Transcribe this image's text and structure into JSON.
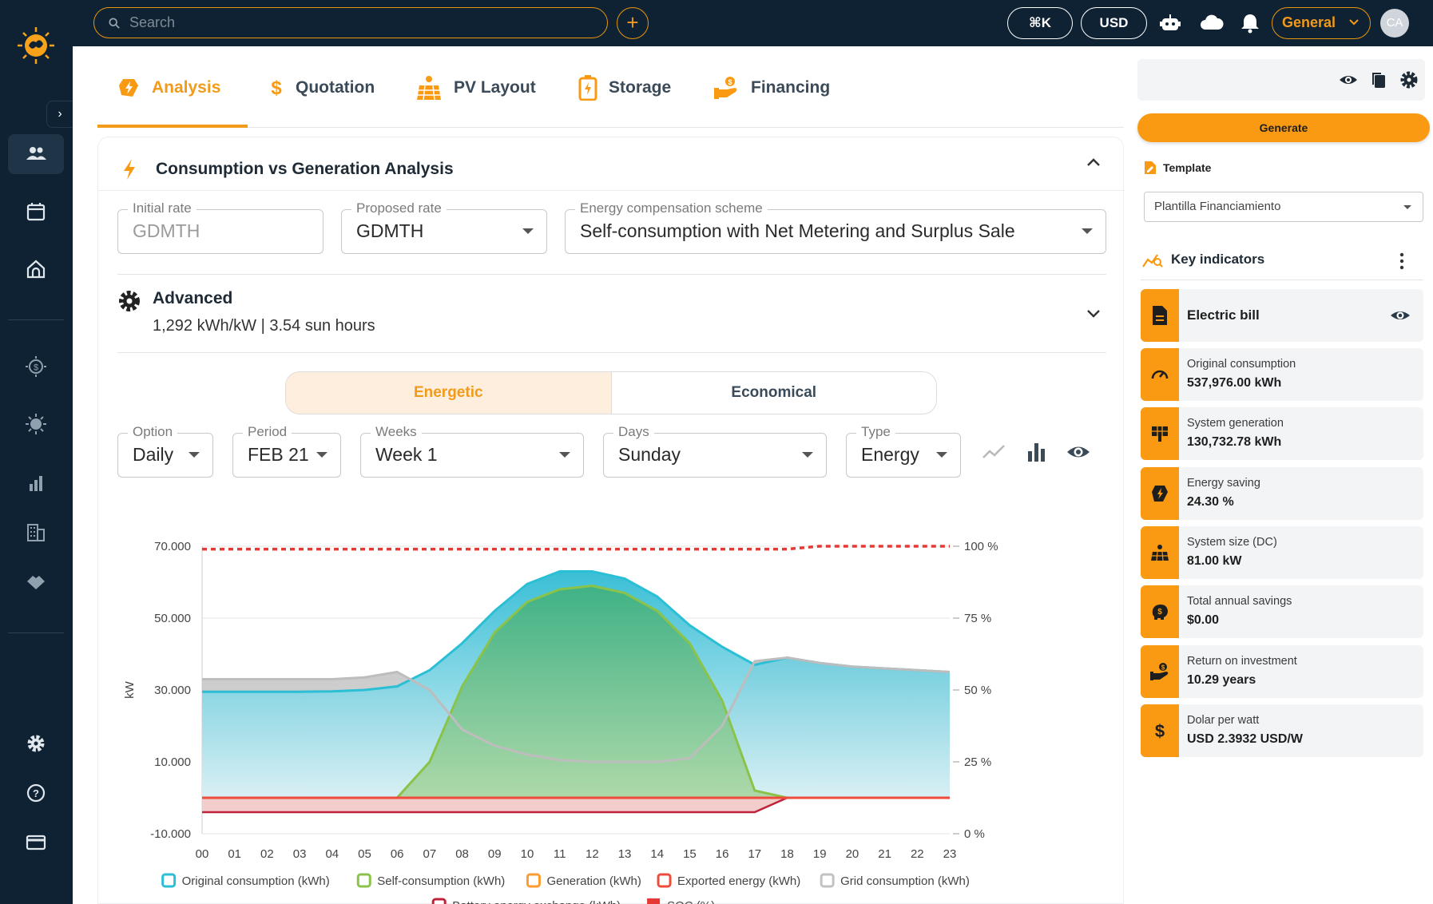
{
  "topbar": {
    "search_placeholder": "Search",
    "shortcut": "⌘K",
    "currency": "USD",
    "workspace": "General",
    "avatar_initials": "CA"
  },
  "tabs": [
    {
      "label": "Analysis",
      "active": true
    },
    {
      "label": "Quotation",
      "active": false
    },
    {
      "label": "PV Layout",
      "active": false
    },
    {
      "label": "Storage",
      "active": false
    },
    {
      "label": "Financing",
      "active": false
    }
  ],
  "analysis": {
    "title": "Consumption vs Generation Analysis",
    "initial_rate": {
      "label": "Initial rate",
      "value": "GDMTH"
    },
    "proposed_rate": {
      "label": "Proposed rate",
      "value": "GDMTH"
    },
    "scheme": {
      "label": "Energy compensation scheme",
      "value": "Self-consumption with Net Metering and Surplus Sale"
    },
    "advanced": {
      "title": "Advanced",
      "subtitle": "1,292 kWh/kW | 3.54 sun hours"
    },
    "toggle": {
      "energetic": "Energetic",
      "economical": "Economical",
      "selected": "Energetic"
    },
    "filters": {
      "option": {
        "label": "Option",
        "value": "Daily"
      },
      "period": {
        "label": "Period",
        "value": "FEB 21"
      },
      "weeks": {
        "label": "Weeks",
        "value": "Week 1"
      },
      "days": {
        "label": "Days",
        "value": "Sunday"
      },
      "type": {
        "label": "Type",
        "value": "Energy"
      }
    }
  },
  "chart_data": {
    "type": "area",
    "ylabel": "kW",
    "x": [
      "00",
      "01",
      "02",
      "03",
      "04",
      "05",
      "06",
      "07",
      "08",
      "09",
      "10",
      "11",
      "12",
      "13",
      "14",
      "15",
      "16",
      "17",
      "18",
      "19",
      "20",
      "21",
      "22",
      "23"
    ],
    "y_ticks": [
      "70.000",
      "50.000",
      "30.000",
      "10.000",
      "-10.000"
    ],
    "ylim": [
      -10,
      70
    ],
    "y2_ticks": [
      "100 %",
      "75 %",
      "50 %",
      "25 %",
      "0 %"
    ],
    "y2lim": [
      0,
      100
    ],
    "series": [
      {
        "name": "Original consumption (kWh)",
        "color": "#2bbfd6",
        "values": [
          29.5,
          29.5,
          29.5,
          29.5,
          29.6,
          30,
          31,
          35.5,
          43,
          52,
          59.5,
          63,
          63,
          61,
          56,
          48,
          42,
          37,
          39,
          37.5,
          36.5,
          36,
          35.5,
          35
        ]
      },
      {
        "name": "Self-consumption (kWh)",
        "color": "#8bc34a",
        "values": [
          0,
          0,
          0,
          0,
          0,
          0,
          0,
          10,
          31,
          46,
          54.5,
          58,
          59,
          57,
          52,
          43,
          27,
          2,
          0,
          0,
          0,
          0,
          0,
          0
        ]
      },
      {
        "name": "Generation (kWh)",
        "color": "#ff9b2f",
        "values": [
          0,
          0,
          0,
          0,
          0,
          0,
          0,
          10,
          31,
          46,
          54.5,
          58,
          59,
          57,
          52,
          43,
          27,
          2,
          0,
          0,
          0,
          0,
          0,
          0
        ]
      },
      {
        "name": "Exported energy (kWh)",
        "color": "#ef4b3b",
        "values": [
          0,
          0,
          0,
          0,
          0,
          0,
          0,
          0,
          0,
          0,
          0,
          0,
          0,
          0,
          0,
          0,
          0,
          0,
          0,
          0,
          0,
          0,
          0,
          0
        ]
      },
      {
        "name": "Grid consumption (kWh)",
        "color": "#c2c2c2",
        "values": [
          33,
          33,
          33,
          33,
          33,
          33.5,
          35,
          30,
          19,
          14.5,
          12,
          10.5,
          10,
          10,
          10,
          11,
          20,
          38,
          39,
          37.5,
          36.5,
          36,
          35.5,
          35
        ]
      },
      {
        "name": "Battery energy exchange (kWh)",
        "color": "#c0223c",
        "values": [
          -4,
          -4,
          -4,
          -4,
          -4,
          -4,
          -4,
          -4,
          -4,
          -4,
          -4,
          -4,
          -4,
          -4,
          -4,
          -4,
          -4,
          -4,
          0,
          0,
          0,
          0,
          0,
          0
        ]
      },
      {
        "name": "SOC (%)",
        "color": "#e53935",
        "axis": "right",
        "values": [
          99,
          99,
          99,
          99,
          99,
          99,
          99,
          99,
          99,
          99,
          99,
          99,
          99,
          99,
          99,
          99,
          99,
          99,
          99,
          100,
          100,
          100,
          100,
          100
        ]
      }
    ]
  },
  "side_panel": {
    "generate_label": "Generate",
    "template_label": "Template",
    "template_value": "Plantilla Financiamiento",
    "key_indicators_title": "Key indicators",
    "electric_bill_label": "Electric bill",
    "kpis": [
      {
        "label": "Original consumption",
        "value": "537,976.00 kWh",
        "icon": "gauge-icon"
      },
      {
        "label": "System generation",
        "value": "130,732.78 kWh",
        "icon": "solar-panel-icon"
      },
      {
        "label": "Energy saving",
        "value": "24.30 %",
        "icon": "energy-saving-icon"
      },
      {
        "label": "System size (DC)",
        "value": "81.00 kW",
        "icon": "solar-array-icon"
      },
      {
        "label": "Total annual savings",
        "value": "$0.00",
        "icon": "piggy-bank-icon"
      },
      {
        "label": "Return on investment",
        "value": "10.29 years",
        "icon": "hand-coin-icon"
      },
      {
        "label": "Dolar per watt",
        "value": "USD 2.3932 USD/W",
        "icon": "dollar-icon"
      }
    ]
  }
}
